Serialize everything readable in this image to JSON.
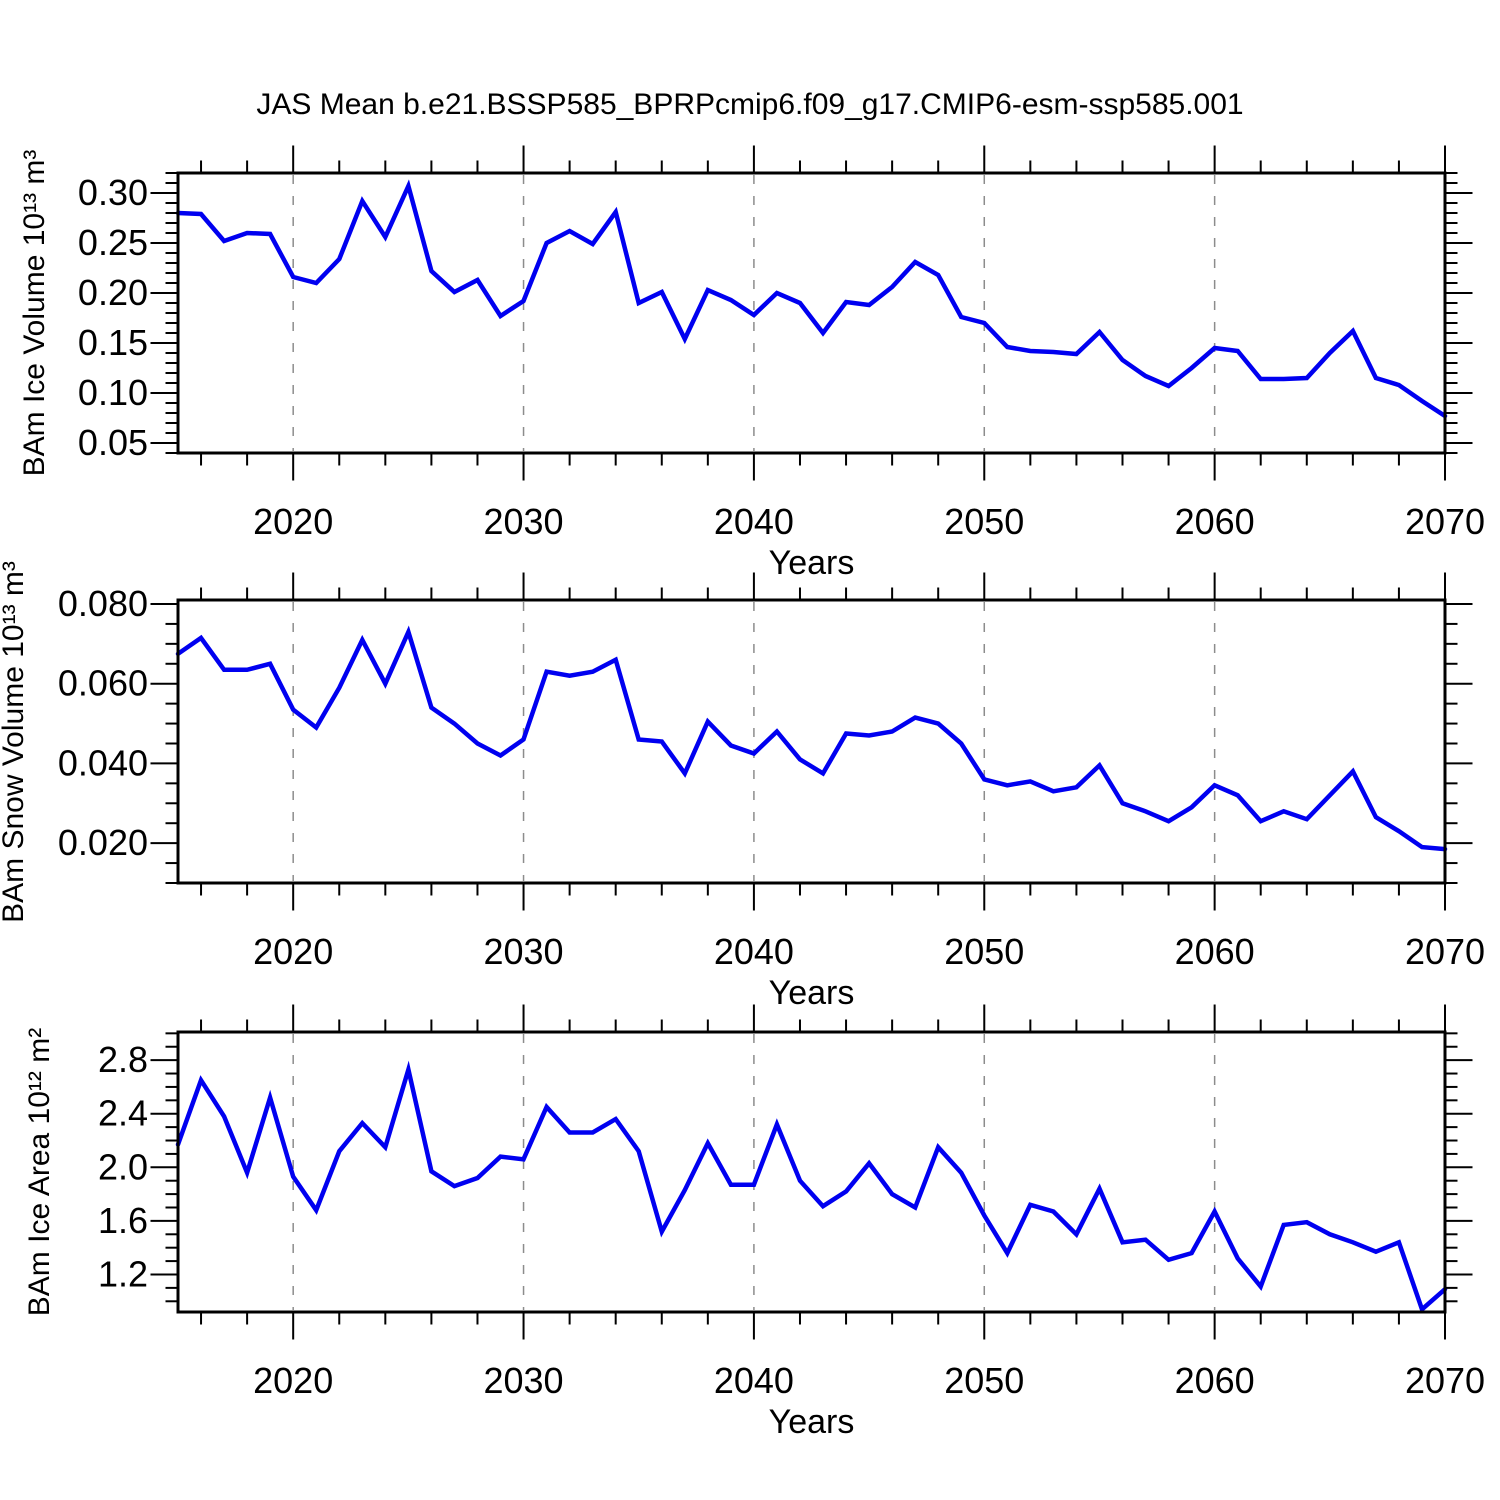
{
  "title": "JAS Mean b.e21.BSSP585_BPRPcmip6.f09_g17.CMIP6-esm-ssp585.001",
  "colors": {
    "line": "#0000f0",
    "grid": "#8c8c8c",
    "axis": "#000000",
    "background": "#ffffff"
  },
  "x_axis": {
    "label": "Years",
    "xlim": [
      2015,
      2070
    ],
    "major_ticks": [
      2020,
      2030,
      2040,
      2050,
      2060,
      2070
    ],
    "major_labels": [
      "2020",
      "2030",
      "2040",
      "2050",
      "2060",
      "2070"
    ],
    "minor_step": 2,
    "gridlines": [
      2020,
      2030,
      2040,
      2050,
      2060
    ]
  },
  "chart_data": [
    {
      "type": "line",
      "name": "ice-volume",
      "ylabel": "BAm Ice Volume 10¹³ m³",
      "xlabel": "Years",
      "ylim": [
        0.04,
        0.32
      ],
      "yticks_major": [
        0.05,
        0.1,
        0.15,
        0.2,
        0.25,
        0.3
      ],
      "yticks_labels": [
        "0.05",
        "0.10",
        "0.15",
        "0.20",
        "0.25",
        "0.30"
      ],
      "yticks_minor_step": 0.01,
      "grid": "vertical-dashed",
      "legend": "none",
      "x": [
        2015,
        2016,
        2017,
        2018,
        2019,
        2020,
        2021,
        2022,
        2023,
        2024,
        2025,
        2026,
        2027,
        2028,
        2029,
        2030,
        2031,
        2032,
        2033,
        2034,
        2035,
        2036,
        2037,
        2038,
        2039,
        2040,
        2041,
        2042,
        2043,
        2044,
        2045,
        2046,
        2047,
        2048,
        2049,
        2050,
        2051,
        2052,
        2053,
        2054,
        2055,
        2056,
        2057,
        2058,
        2059,
        2060,
        2061,
        2062,
        2063,
        2064,
        2065,
        2066,
        2067,
        2068,
        2069,
        2070
      ],
      "values": [
        0.28,
        0.279,
        0.252,
        0.26,
        0.259,
        0.216,
        0.21,
        0.234,
        0.292,
        0.256,
        0.307,
        0.222,
        0.201,
        0.213,
        0.177,
        0.192,
        0.25,
        0.262,
        0.249,
        0.281,
        0.19,
        0.201,
        0.154,
        0.203,
        0.193,
        0.178,
        0.2,
        0.19,
        0.16,
        0.191,
        0.188,
        0.206,
        0.231,
        0.218,
        0.176,
        0.17,
        0.146,
        0.142,
        0.141,
        0.139,
        0.161,
        0.133,
        0.117,
        0.107,
        0.125,
        0.145,
        0.142,
        0.114,
        0.114,
        0.115,
        0.14,
        0.162,
        0.115,
        0.108,
        0.092,
        0.077
      ]
    },
    {
      "type": "line",
      "name": "snow-volume",
      "ylabel": "BAm Snow Volume 10¹³ m³",
      "xlabel": "Years",
      "ylim": [
        0.01,
        0.081
      ],
      "yticks_major": [
        0.02,
        0.04,
        0.06,
        0.08
      ],
      "yticks_labels": [
        "0.020",
        "0.040",
        "0.060",
        "0.080"
      ],
      "yticks_minor_step": 0.005,
      "grid": "vertical-dashed",
      "legend": "none",
      "x": [
        2015,
        2016,
        2017,
        2018,
        2019,
        2020,
        2021,
        2022,
        2023,
        2024,
        2025,
        2026,
        2027,
        2028,
        2029,
        2030,
        2031,
        2032,
        2033,
        2034,
        2035,
        2036,
        2037,
        2038,
        2039,
        2040,
        2041,
        2042,
        2043,
        2044,
        2045,
        2046,
        2047,
        2048,
        2049,
        2050,
        2051,
        2052,
        2053,
        2054,
        2055,
        2056,
        2057,
        2058,
        2059,
        2060,
        2061,
        2062,
        2063,
        2064,
        2065,
        2066,
        2067,
        2068,
        2069,
        2070
      ],
      "values": [
        0.0675,
        0.0715,
        0.0635,
        0.0635,
        0.065,
        0.0535,
        0.049,
        0.059,
        0.071,
        0.06,
        0.073,
        0.054,
        0.05,
        0.045,
        0.042,
        0.046,
        0.063,
        0.062,
        0.063,
        0.066,
        0.046,
        0.0455,
        0.0375,
        0.0505,
        0.0445,
        0.0425,
        0.048,
        0.041,
        0.0375,
        0.0475,
        0.047,
        0.048,
        0.0515,
        0.05,
        0.045,
        0.036,
        0.0345,
        0.0355,
        0.033,
        0.034,
        0.0395,
        0.03,
        0.028,
        0.0255,
        0.029,
        0.0345,
        0.032,
        0.0255,
        0.028,
        0.026,
        0.032,
        0.038,
        0.0265,
        0.023,
        0.019,
        0.0185
      ]
    },
    {
      "type": "line",
      "name": "ice-area",
      "ylabel": "BAm Ice Area 10¹² m²",
      "xlabel": "Years",
      "ylim": [
        0.92,
        3.01
      ],
      "yticks_major": [
        1.2,
        1.6,
        2.0,
        2.4,
        2.8
      ],
      "yticks_labels": [
        "1.2",
        "1.6",
        "2.0",
        "2.4",
        "2.8"
      ],
      "yticks_minor_step": 0.1,
      "grid": "vertical-dashed",
      "legend": "none",
      "x": [
        2015,
        2016,
        2017,
        2018,
        2019,
        2020,
        2021,
        2022,
        2023,
        2024,
        2025,
        2026,
        2027,
        2028,
        2029,
        2030,
        2031,
        2032,
        2033,
        2034,
        2035,
        2036,
        2037,
        2038,
        2039,
        2040,
        2041,
        2042,
        2043,
        2044,
        2045,
        2046,
        2047,
        2048,
        2049,
        2050,
        2051,
        2052,
        2053,
        2054,
        2055,
        2056,
        2057,
        2058,
        2059,
        2060,
        2061,
        2062,
        2063,
        2064,
        2065,
        2066,
        2067,
        2068,
        2069,
        2070
      ],
      "values": [
        2.17,
        2.65,
        2.38,
        1.96,
        2.52,
        1.93,
        1.68,
        2.12,
        2.33,
        2.15,
        2.73,
        1.97,
        1.86,
        1.92,
        2.08,
        2.06,
        2.45,
        2.26,
        2.26,
        2.36,
        2.12,
        1.52,
        1.83,
        2.18,
        1.87,
        1.87,
        2.32,
        1.9,
        1.71,
        1.82,
        2.03,
        1.8,
        1.7,
        2.15,
        1.96,
        1.64,
        1.36,
        1.72,
        1.67,
        1.5,
        1.84,
        1.44,
        1.46,
        1.31,
        1.36,
        1.67,
        1.32,
        1.11,
        1.57,
        1.59,
        1.5,
        1.44,
        1.37,
        1.44,
        0.94,
        1.09
      ]
    }
  ]
}
